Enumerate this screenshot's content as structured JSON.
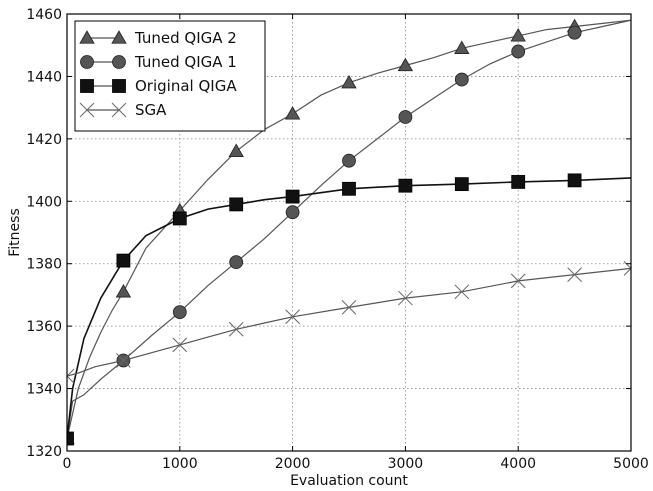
{
  "chart_data": {
    "type": "line",
    "title": "",
    "xlabel": "Evaluation count",
    "ylabel": "Fitness",
    "xlim": [
      0,
      5000
    ],
    "ylim": [
      1320,
      1460
    ],
    "xticks": [
      0,
      1000,
      2000,
      3000,
      4000,
      5000
    ],
    "yticks": [
      1320,
      1340,
      1360,
      1380,
      1400,
      1420,
      1440,
      1460
    ],
    "grid": true,
    "legend_position": "top-left",
    "series": [
      {
        "name": "Tuned QIGA 2",
        "marker": "triangle",
        "color": "#555555",
        "x": [
          0,
          100,
          200,
          300,
          400,
          500,
          700,
          1000,
          1250,
          1500,
          1750,
          2000,
          2250,
          2500,
          2750,
          3000,
          3250,
          3500,
          3750,
          4000,
          4250,
          4500,
          4750,
          5000
        ],
        "y": [
          1324,
          1340,
          1350,
          1358,
          1365,
          1371,
          1385,
          1397,
          1407,
          1416,
          1423,
          1428,
          1434,
          1438,
          1441,
          1443.5,
          1446,
          1449,
          1451,
          1453,
          1455,
          1456,
          1457,
          1458
        ],
        "marker_x": [
          0,
          500,
          1000,
          1500,
          2000,
          2500,
          3000,
          3500,
          4000,
          4500
        ],
        "marker_y": [
          1324,
          1371,
          1397,
          1416,
          1428,
          1438,
          1443.5,
          1449,
          1453,
          1456
        ]
      },
      {
        "name": "Tuned QIGA 1",
        "marker": "circle",
        "color": "#555555",
        "x": [
          0,
          50,
          150,
          300,
          500,
          750,
          1000,
          1250,
          1500,
          1750,
          2000,
          2250,
          2500,
          2750,
          3000,
          3250,
          3500,
          3750,
          4000,
          4250,
          4500,
          4750,
          5000
        ],
        "y": [
          1324,
          1336,
          1338,
          1343,
          1349,
          1357,
          1364.5,
          1373,
          1380.5,
          1388,
          1396.5,
          1405,
          1413,
          1420,
          1427,
          1433,
          1439,
          1444,
          1448,
          1451,
          1454,
          1456,
          1458
        ],
        "marker_x": [
          0,
          500,
          1000,
          1500,
          2000,
          2500,
          3000,
          3500,
          4000,
          4500
        ],
        "marker_y": [
          1324,
          1349,
          1364.5,
          1380.5,
          1396.5,
          1413,
          1427,
          1439,
          1448,
          1454
        ]
      },
      {
        "name": "Original QIGA",
        "marker": "square",
        "color": "#111111",
        "x": [
          0,
          50,
          150,
          300,
          500,
          700,
          1000,
          1250,
          1500,
          1750,
          2000,
          2500,
          3000,
          3500,
          4000,
          4500,
          5000
        ],
        "y": [
          1324,
          1340,
          1356,
          1369,
          1381,
          1389,
          1394.5,
          1397.5,
          1399,
          1400.5,
          1401.5,
          1404,
          1405,
          1405.5,
          1406.2,
          1406.7,
          1407.5
        ],
        "marker_x": [
          0,
          500,
          1000,
          1500,
          2000,
          2500,
          3000,
          3500,
          4000,
          4500
        ],
        "marker_y": [
          1324,
          1381,
          1394.5,
          1399,
          1401.5,
          1404,
          1405,
          1405.5,
          1406.2,
          1406.7
        ]
      },
      {
        "name": "SGA",
        "marker": "x",
        "color": "#666666",
        "x": [
          0,
          100,
          250,
          500,
          750,
          1000,
          1250,
          1500,
          1750,
          2000,
          2500,
          3000,
          3500,
          4000,
          4500,
          5000
        ],
        "y": [
          1344,
          1345,
          1347,
          1349,
          1351.5,
          1354,
          1356.5,
          1359,
          1361,
          1363,
          1366,
          1369,
          1371,
          1374.5,
          1376.5,
          1378.5
        ],
        "marker_x": [
          0,
          500,
          1000,
          1500,
          2000,
          2500,
          3000,
          3500,
          4000,
          4500,
          5000
        ],
        "marker_y": [
          1344,
          1349,
          1354,
          1359,
          1363,
          1366,
          1369,
          1371,
          1374.5,
          1376.5,
          1378.5
        ]
      }
    ]
  }
}
